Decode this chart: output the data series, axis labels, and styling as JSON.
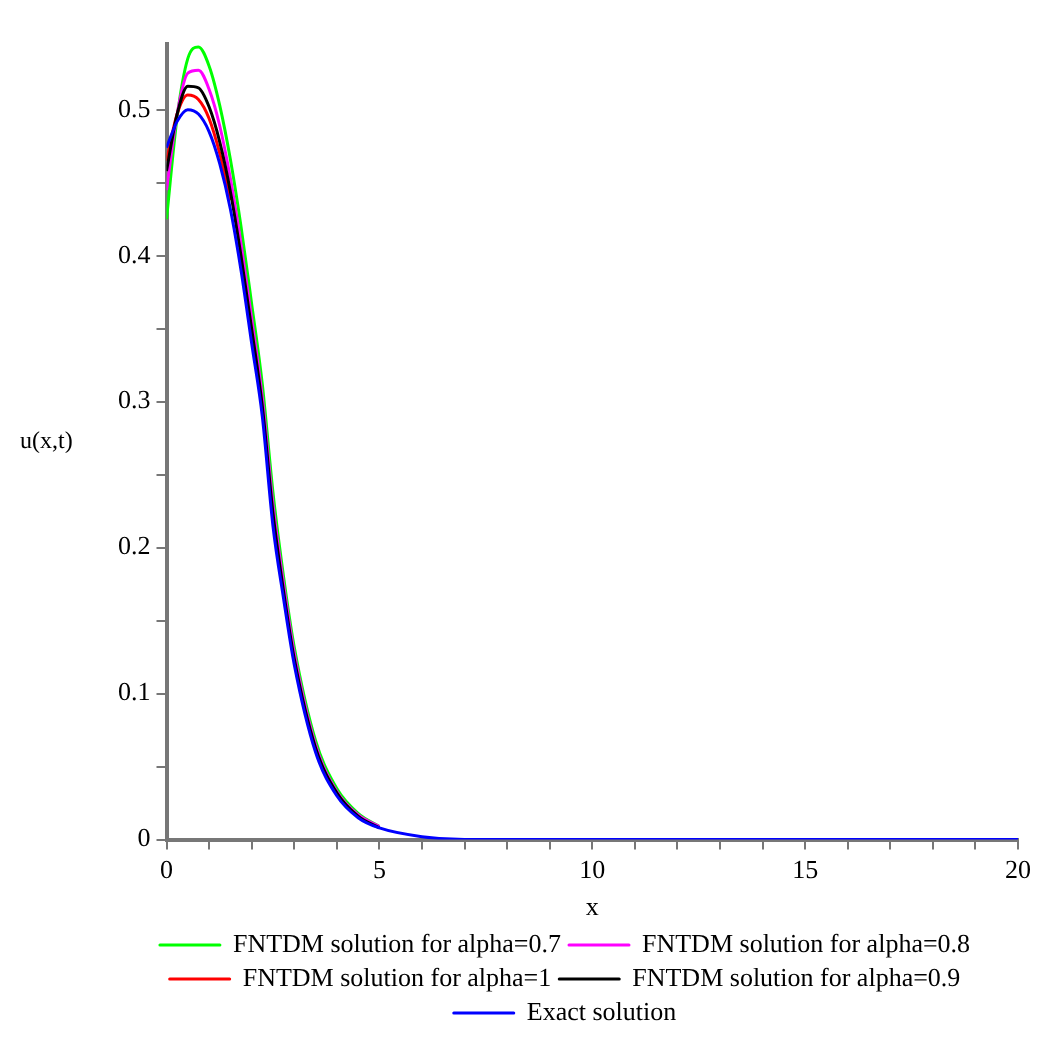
{
  "chart_data": {
    "type": "line",
    "xlabel": "x",
    "ylabel": "u(x,t)",
    "x": [
      0,
      0.25,
      0.5,
      0.75,
      1,
      1.25,
      1.5,
      1.75,
      2,
      2.25,
      2.5,
      2.75,
      3,
      3.5,
      4,
      4.5,
      5,
      6,
      7,
      8,
      10,
      15,
      20
    ],
    "series": [
      {
        "name": "FNTDM solution for alpha=0.7",
        "color": "#00ff00",
        "values": [
          0.425,
          0.495,
          0.535,
          0.543,
          0.53,
          0.503,
          0.466,
          0.42,
          0.367,
          0.312,
          0.238,
          0.18,
          0.132,
          0.068,
          0.035,
          0.018,
          0.009,
          null,
          null,
          null,
          null,
          null,
          null
        ]
      },
      {
        "name": "FNTDM solution for alpha=0.8",
        "color": "#ff00ff",
        "values": [
          0.445,
          0.497,
          0.525,
          0.527,
          0.514,
          0.489,
          0.453,
          0.408,
          0.357,
          0.303,
          0.23,
          0.175,
          0.128,
          0.065,
          0.033,
          0.017,
          0.009,
          null,
          null,
          null,
          null,
          null,
          null
        ]
      },
      {
        "name": "FNTDM solution for alpha=1",
        "color": "#ff0000",
        "values": [
          0.465,
          0.497,
          0.51,
          0.507,
          0.494,
          0.47,
          0.438,
          null,
          null,
          null,
          null,
          null,
          null,
          null,
          null,
          null,
          null,
          null,
          null,
          null,
          null,
          null,
          null
        ]
      },
      {
        "name": "FNTDM solution for alpha=0.9",
        "color": "#000000",
        "values": [
          0.458,
          0.497,
          0.516,
          0.515,
          0.502,
          0.478,
          0.444,
          0.4,
          0.35,
          0.297,
          0.224,
          0.17,
          0.124,
          0.063,
          0.032,
          0.016,
          0.008,
          null,
          null,
          null,
          null,
          null,
          null
        ]
      },
      {
        "name": "Exact solution",
        "color": "#0000ff",
        "values": [
          0.474,
          0.492,
          0.5,
          0.497,
          0.485,
          0.463,
          0.432,
          0.39,
          0.34,
          0.29,
          0.215,
          0.165,
          0.12,
          0.06,
          0.03,
          0.015,
          0.008,
          0.002,
          0,
          0,
          0,
          0,
          0
        ]
      }
    ],
    "xlim": [
      0,
      20
    ],
    "ylim": [
      0,
      0.545
    ],
    "xticks": [
      0,
      {
        "value": 1,
        "label": null
      },
      {
        "value": 2,
        "label": null
      },
      {
        "value": 3,
        "label": null
      },
      {
        "value": 4,
        "label": null
      },
      5,
      {
        "value": 6,
        "label": null
      },
      {
        "value": 7,
        "label": null
      },
      {
        "value": 8,
        "label": null
      },
      {
        "value": 9,
        "label": null
      },
      10,
      {
        "value": 11,
        "label": null
      },
      {
        "value": 12,
        "label": null
      },
      {
        "value": 13,
        "label": null
      },
      {
        "value": 14,
        "label": null
      },
      15,
      {
        "value": 16,
        "label": null
      },
      {
        "value": 17,
        "label": null
      },
      {
        "value": 18,
        "label": null
      },
      {
        "value": 19,
        "label": null
      },
      20
    ],
    "yticks": [
      0,
      {
        "value": 0.05,
        "label": null
      },
      0.1,
      {
        "value": 0.15,
        "label": null
      },
      0.2,
      {
        "value": 0.25,
        "label": null
      },
      0.3,
      {
        "value": 0.35,
        "label": null
      },
      0.4,
      {
        "value": 0.45,
        "label": null
      },
      0.5
    ],
    "grid": false,
    "legend": "bottom",
    "marker": "none",
    "line_style": "solid"
  }
}
